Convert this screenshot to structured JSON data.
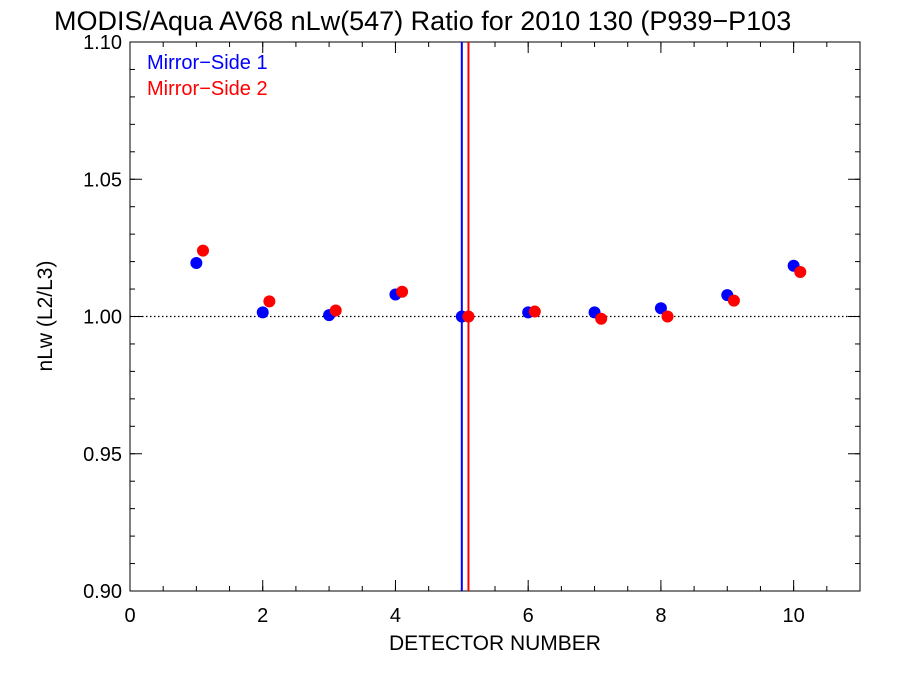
{
  "chart_data": {
    "type": "scatter",
    "title": "MODIS/Aqua AV68 nLw(547) Ratio for 2010 130 (P939−P103",
    "xlabel": "DETECTOR NUMBER",
    "ylabel": "nLw (L2/L3)",
    "xlim": [
      0,
      11
    ],
    "ylim": [
      0.9,
      1.1
    ],
    "x_ticks": [
      0,
      2,
      4,
      6,
      8,
      10
    ],
    "x_tick_labels": [
      "0",
      "2",
      "4",
      "6",
      "8",
      "10"
    ],
    "y_ticks": [
      0.9,
      0.95,
      1.0,
      1.05,
      1.1
    ],
    "y_tick_labels": [
      "0.90",
      "0.95",
      "1.00",
      "1.05",
      "1.10"
    ],
    "x_minor_step": 0.5,
    "y_minor_step": 0.01,
    "grid": false,
    "legend_position": "top-left",
    "reference_line": {
      "y": 1.0,
      "style": "dotted",
      "color": "#000000"
    },
    "vertical_lines": [
      {
        "x": 5.0,
        "color": "#0000ff"
      },
      {
        "x": 5.1,
        "color": "#ff0000"
      }
    ],
    "series": [
      {
        "name": "Mirror−Side 1",
        "color": "#0000ff",
        "x": [
          1,
          2,
          3,
          4,
          5,
          6,
          7,
          8,
          9,
          10
        ],
        "y": [
          1.0195,
          1.0015,
          1.0005,
          1.008,
          1.0,
          1.0015,
          1.0015,
          1.003,
          1.0078,
          1.0185
        ]
      },
      {
        "name": "Mirror−Side 2",
        "color": "#ff0000",
        "x": [
          1.1,
          2.1,
          3.1,
          4.1,
          5.1,
          6.1,
          7.1,
          8.1,
          9.1,
          10.1
        ],
        "y": [
          1.024,
          1.0055,
          1.0022,
          1.009,
          1.0,
          1.0018,
          0.9992,
          1.0,
          1.0058,
          1.0162
        ]
      }
    ]
  }
}
